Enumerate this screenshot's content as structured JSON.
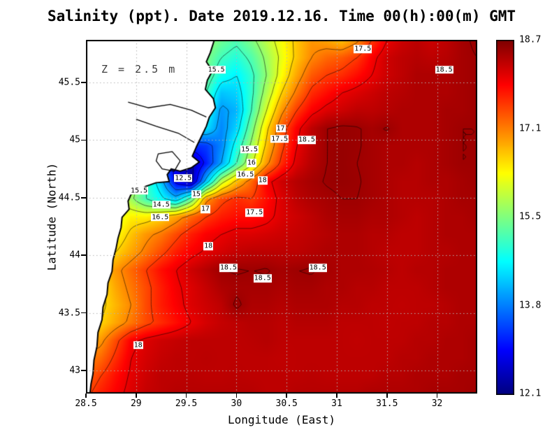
{
  "title": "Salinity (ppt). Date 2019.12.16. Time 00(h):00(m) GMT",
  "annotation": "Z = 2.5 m",
  "axes": {
    "x_label": "Longitude (East)",
    "y_label": "Latitude (North)",
    "x_ticks": [
      "28.5",
      "29",
      "29.5",
      "30",
      "30.5",
      "31",
      "31.5",
      "32"
    ],
    "x_tick_values": [
      28.5,
      29,
      29.5,
      30,
      30.5,
      31,
      31.5,
      32
    ],
    "y_ticks": [
      "43",
      "43.5",
      "44",
      "44.5",
      "45",
      "45.5"
    ],
    "y_tick_values": [
      43,
      43.5,
      44,
      44.5,
      45,
      45.5
    ]
  },
  "colorbar": {
    "labels": [
      "18.7",
      "17.1",
      "15.5",
      "13.8",
      "12.1"
    ],
    "values": [
      18.7,
      17.1,
      15.5,
      13.8,
      12.1
    ]
  },
  "chart_data": {
    "type": "heatmap",
    "title": "Salinity (ppt). Date 2019.12.16. Time 00(h):00(m) GMT",
    "xlabel": "Longitude (East)",
    "ylabel": "Latitude (North)",
    "variable": "Salinity",
    "units": "ppt",
    "depth_label": "Z = 2.5 m",
    "vmin": 12.1,
    "vmax": 18.7,
    "colormap": "jet",
    "grid_on": true,
    "contour_interval": 0.5,
    "contour_levels": [
      12.5,
      13,
      13.5,
      14,
      14.5,
      15,
      15.5,
      16,
      16.5,
      17,
      17.5,
      18,
      18.5
    ],
    "lon_range": [
      28.5,
      32.4
    ],
    "lat_range": [
      42.8,
      45.87
    ],
    "salinity_grid": {
      "lon_min": 28.5,
      "lon_max": 32.4,
      "lat_max": 45.87,
      "lat_min": 42.8,
      "rows_order": "north_to_south",
      "values": [
        [
          15.5,
          15.5,
          15.5,
          15.5,
          15.5,
          15.5,
          15.5,
          15.6,
          15.6,
          15.3,
          15.1,
          15.4,
          15.8,
          16.2,
          16.6,
          16.9,
          16.8,
          16.6,
          16.9,
          17.5,
          18.0,
          18.2,
          18.3,
          18.2,
          18.3,
          18.45,
          18.55
        ],
        [
          15.4,
          15.4,
          15.4,
          15.4,
          15.4,
          15.4,
          15.4,
          15.4,
          15.4,
          15.0,
          14.8,
          15.1,
          15.6,
          16.1,
          16.6,
          17.0,
          17.2,
          17.3,
          17.5,
          17.9,
          18.2,
          18.3,
          18.35,
          18.3,
          18.35,
          18.45,
          18.5
        ],
        [
          15.3,
          15.3,
          15.3,
          15.3,
          15.3,
          15.3,
          15.3,
          15.3,
          15.3,
          14.7,
          14.5,
          14.9,
          15.5,
          16.2,
          16.8,
          17.3,
          17.5,
          17.6,
          17.8,
          18.0,
          18.2,
          18.3,
          18.4,
          18.4,
          18.4,
          18.45,
          18.5
        ],
        [
          15.0,
          15.0,
          15.0,
          15.0,
          15.0,
          15.0,
          15.0,
          15.0,
          15.0,
          14.2,
          14.3,
          14.9,
          15.7,
          16.5,
          17.1,
          17.6,
          17.8,
          18.0,
          18.1,
          18.2,
          18.3,
          18.35,
          18.4,
          18.4,
          18.4,
          18.45,
          18.5
        ],
        [
          14.7,
          14.7,
          14.7,
          14.7,
          14.7,
          14.7,
          14.7,
          14.7,
          14.7,
          13.9,
          14.1,
          15.0,
          16.0,
          16.9,
          17.5,
          17.9,
          18.1,
          18.2,
          18.3,
          18.3,
          18.35,
          18.4,
          18.4,
          18.4,
          18.45,
          18.45,
          18.5
        ],
        [
          14.4,
          14.4,
          14.4,
          14.4,
          14.4,
          14.4,
          14.4,
          14.4,
          14.4,
          13.8,
          14.3,
          15.3,
          16.4,
          17.3,
          17.9,
          18.3,
          18.5,
          18.55,
          18.52,
          18.45,
          18.52,
          18.4,
          18.4,
          18.4,
          18.45,
          18.5,
          18.5
        ],
        [
          13.9,
          13.9,
          13.9,
          13.9,
          13.9,
          13.9,
          13.9,
          13.2,
          13.3,
          13.8,
          14.7,
          15.6,
          16.6,
          17.4,
          18.0,
          18.3,
          18.5,
          18.55,
          18.52,
          18.45,
          18.4,
          18.4,
          18.4,
          18.4,
          18.45,
          18.5,
          18.5
        ],
        [
          13.5,
          13.5,
          13.5,
          13.5,
          13.5,
          13.5,
          12.8,
          12.4,
          13.1,
          14.0,
          15.0,
          15.9,
          16.9,
          17.6,
          18.1,
          18.35,
          18.5,
          18.55,
          18.5,
          18.45,
          18.4,
          18.4,
          18.35,
          18.4,
          18.45,
          18.5,
          18.5
        ],
        [
          15.8,
          15.8,
          15.8,
          15.8,
          15.0,
          14.2,
          12.8,
          12.3,
          14.2,
          15.8,
          16.6,
          17.2,
          17.9,
          18.2,
          18.35,
          18.45,
          18.52,
          18.55,
          18.52,
          18.45,
          18.4,
          18.35,
          18.35,
          18.4,
          18.4,
          18.45,
          18.5
        ],
        [
          16.2,
          16.2,
          16.2,
          15.6,
          15.0,
          14.6,
          14.2,
          15.2,
          16.9,
          17.4,
          17.6,
          17.5,
          17.8,
          18.1,
          18.3,
          18.4,
          18.45,
          18.5,
          18.5,
          18.45,
          18.4,
          18.35,
          18.35,
          18.35,
          18.4,
          18.45,
          18.45
        ],
        [
          16.0,
          16.0,
          16.0,
          16.3,
          16.3,
          16.5,
          16.8,
          17.2,
          17.5,
          17.7,
          17.8,
          17.8,
          17.9,
          18.1,
          18.2,
          18.3,
          18.4,
          18.45,
          18.45,
          18.4,
          18.4,
          18.35,
          18.3,
          18.35,
          18.4,
          18.4,
          18.45
        ],
        [
          16.2,
          16.2,
          16.2,
          16.6,
          16.9,
          17.1,
          17.4,
          17.7,
          17.9,
          18.0,
          18.1,
          18.1,
          18.15,
          18.2,
          18.25,
          18.3,
          18.35,
          18.4,
          18.4,
          18.35,
          18.35,
          18.3,
          18.3,
          18.35,
          18.4,
          18.4,
          18.4
        ],
        [
          16.4,
          16.4,
          16.5,
          16.8,
          17.1,
          17.4,
          17.7,
          17.9,
          18.05,
          18.15,
          18.25,
          18.3,
          18.3,
          18.3,
          18.3,
          18.35,
          18.4,
          18.4,
          18.4,
          18.35,
          18.3,
          18.3,
          18.3,
          18.35,
          18.35,
          18.4,
          18.4
        ],
        [
          16.6,
          16.6,
          16.9,
          17.2,
          17.5,
          17.8,
          18.0,
          18.2,
          18.35,
          18.5,
          18.52,
          18.5,
          18.52,
          18.45,
          18.5,
          18.52,
          18.45,
          18.4,
          18.4,
          18.38,
          18.35,
          18.3,
          18.35,
          18.35,
          18.4,
          18.4,
          18.4
        ],
        [
          16.5,
          16.4,
          16.8,
          17.1,
          17.4,
          17.7,
          17.95,
          18.1,
          18.25,
          18.4,
          18.45,
          18.45,
          18.45,
          18.4,
          18.45,
          18.45,
          18.4,
          18.4,
          18.35,
          18.35,
          18.3,
          18.3,
          18.3,
          18.35,
          18.4,
          18.4,
          18.4
        ],
        [
          16.5,
          16.4,
          16.7,
          17.0,
          17.4,
          17.7,
          17.9,
          18.1,
          18.2,
          18.3,
          18.55,
          18.4,
          18.4,
          18.35,
          18.4,
          18.4,
          18.4,
          18.35,
          18.35,
          18.3,
          18.3,
          18.28,
          18.3,
          18.3,
          18.35,
          18.4,
          18.4
        ],
        [
          16.6,
          16.5,
          16.8,
          17.1,
          17.4,
          17.6,
          17.8,
          18.0,
          18.15,
          18.25,
          18.3,
          18.35,
          18.35,
          18.3,
          18.35,
          18.35,
          18.35,
          18.3,
          18.3,
          18.3,
          18.28,
          18.3,
          18.3,
          18.35,
          18.35,
          18.4,
          18.4
        ],
        [
          16.8,
          16.9,
          17.4,
          17.9,
          18.1,
          18.2,
          18.25,
          18.3,
          18.3,
          18.3,
          18.3,
          18.32,
          18.35,
          18.3,
          18.3,
          18.3,
          18.3,
          18.3,
          18.28,
          18.3,
          18.3,
          18.3,
          18.35,
          18.35,
          18.4,
          18.4,
          18.45
        ],
        [
          17.0,
          17.2,
          17.6,
          18.0,
          18.15,
          18.25,
          18.3,
          18.3,
          18.32,
          18.3,
          18.3,
          18.3,
          18.3,
          18.28,
          18.3,
          18.3,
          18.3,
          18.3,
          18.3,
          18.3,
          18.3,
          18.35,
          18.35,
          18.4,
          18.4,
          18.4,
          18.45
        ],
        [
          17.2,
          17.5,
          17.8,
          18.05,
          18.2,
          18.3,
          18.3,
          18.32,
          18.3,
          18.3,
          18.32,
          18.3,
          18.3,
          18.3,
          18.3,
          18.32,
          18.3,
          18.3,
          18.3,
          18.3,
          18.35,
          18.35,
          18.4,
          18.4,
          18.4,
          18.45,
          18.45
        ],
        [
          17.4,
          17.7,
          17.9,
          18.1,
          18.25,
          18.3,
          18.35,
          18.35,
          18.35,
          18.35,
          18.35,
          18.35,
          18.3,
          18.3,
          18.35,
          18.35,
          18.35,
          18.35,
          18.35,
          18.4,
          18.4,
          18.4,
          18.4,
          18.45,
          18.45,
          18.45,
          18.5
        ]
      ]
    },
    "coastline": [
      [
        28.5,
        45.87
      ],
      [
        29.78,
        45.87
      ],
      [
        29.74,
        45.76
      ],
      [
        29.7,
        45.68
      ],
      [
        29.76,
        45.6
      ],
      [
        29.71,
        45.52
      ],
      [
        29.69,
        45.44
      ],
      [
        29.77,
        45.36
      ],
      [
        29.79,
        45.28
      ],
      [
        29.73,
        45.2
      ],
      [
        29.7,
        45.12
      ],
      [
        29.65,
        45.03
      ],
      [
        29.6,
        44.94
      ],
      [
        29.56,
        44.86
      ],
      [
        29.63,
        44.81
      ],
      [
        29.55,
        44.76
      ],
      [
        29.44,
        44.73
      ],
      [
        29.35,
        44.75
      ],
      [
        29.31,
        44.7
      ],
      [
        29.33,
        44.64
      ],
      [
        29.2,
        44.63
      ],
      [
        29.1,
        44.6
      ],
      [
        29.03,
        44.56
      ],
      [
        28.95,
        44.53
      ],
      [
        28.92,
        44.47
      ],
      [
        28.93,
        44.4
      ],
      [
        28.86,
        44.33
      ],
      [
        28.85,
        44.24
      ],
      [
        28.82,
        44.15
      ],
      [
        28.8,
        44.06
      ],
      [
        28.77,
        43.96
      ],
      [
        28.76,
        43.86
      ],
      [
        28.72,
        43.76
      ],
      [
        28.71,
        43.66
      ],
      [
        28.67,
        43.55
      ],
      [
        28.66,
        43.44
      ],
      [
        28.62,
        43.33
      ],
      [
        28.61,
        43.21
      ],
      [
        28.58,
        43.09
      ],
      [
        28.57,
        42.97
      ],
      [
        28.55,
        42.88
      ],
      [
        28.54,
        42.8
      ],
      [
        28.5,
        42.8
      ]
    ],
    "land_shapes": [
      {
        "closed": true,
        "points": [
          [
            29.22,
            44.88
          ],
          [
            29.36,
            44.9
          ],
          [
            29.44,
            44.82
          ],
          [
            29.38,
            44.73
          ],
          [
            29.26,
            44.75
          ],
          [
            29.2,
            44.82
          ]
        ]
      },
      {
        "closed": false,
        "points": [
          [
            28.92,
            45.33
          ],
          [
            29.12,
            45.28
          ],
          [
            29.34,
            45.31
          ],
          [
            29.55,
            45.26
          ],
          [
            29.7,
            45.2
          ]
        ]
      },
      {
        "closed": false,
        "points": [
          [
            29.0,
            45.18
          ],
          [
            29.2,
            45.12
          ],
          [
            29.42,
            45.06
          ],
          [
            29.58,
            44.98
          ]
        ]
      }
    ],
    "contour_labels": [
      {
        "text": "17.5",
        "lon": 31.26,
        "lat": 45.79
      },
      {
        "text": "18.5",
        "lon": 32.07,
        "lat": 45.61
      },
      {
        "text": "15.5",
        "lon": 29.8,
        "lat": 45.61
      },
      {
        "text": "17",
        "lon": 30.44,
        "lat": 45.1
      },
      {
        "text": "17.5",
        "lon": 30.43,
        "lat": 45.01
      },
      {
        "text": "18.5",
        "lon": 30.7,
        "lat": 45.0
      },
      {
        "text": "15.5",
        "lon": 30.13,
        "lat": 44.92
      },
      {
        "text": "16",
        "lon": 30.15,
        "lat": 44.8
      },
      {
        "text": "16.5",
        "lon": 30.09,
        "lat": 44.7
      },
      {
        "text": "18",
        "lon": 30.26,
        "lat": 44.65
      },
      {
        "text": "12.5",
        "lon": 29.47,
        "lat": 44.67
      },
      {
        "text": "15.5",
        "lon": 29.03,
        "lat": 44.56
      },
      {
        "text": "15",
        "lon": 29.6,
        "lat": 44.53
      },
      {
        "text": "14.5",
        "lon": 29.25,
        "lat": 44.44
      },
      {
        "text": "17",
        "lon": 29.69,
        "lat": 44.4
      },
      {
        "text": "16.5",
        "lon": 29.24,
        "lat": 44.33
      },
      {
        "text": "17.5",
        "lon": 30.18,
        "lat": 44.37
      },
      {
        "text": "18",
        "lon": 29.72,
        "lat": 44.08
      },
      {
        "text": "18.5",
        "lon": 29.92,
        "lat": 43.89
      },
      {
        "text": "18.5",
        "lon": 30.26,
        "lat": 43.8
      },
      {
        "text": "18.5",
        "lon": 30.81,
        "lat": 43.89
      },
      {
        "text": "18",
        "lon": 29.02,
        "lat": 43.22
      }
    ]
  }
}
